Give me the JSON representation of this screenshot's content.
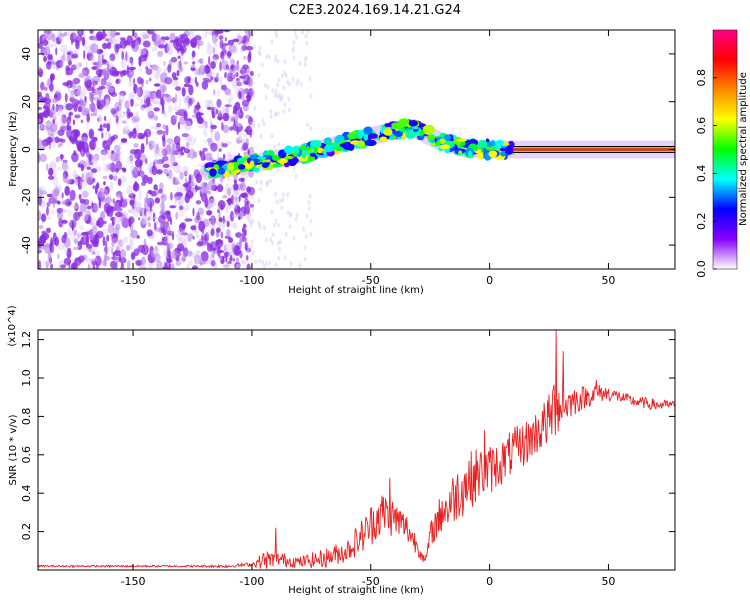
{
  "title": "C2E3.2024.169.14.21.G24",
  "chart_data": [
    {
      "type": "heatmap",
      "xlabel": "Height of straight line (km)",
      "ylabel": "Frequency (Hz)",
      "xlim": [
        -190,
        78
      ],
      "ylim": [
        -50,
        50
      ],
      "xticks": [
        -150,
        -100,
        -50,
        0,
        50
      ],
      "yticks": [
        -40,
        -20,
        0,
        20,
        40
      ],
      "colorbar": {
        "label": "Normalized spectral amplitude",
        "range": [
          0.0,
          1.0
        ],
        "ticks": [
          "0.0",
          "0.2",
          "0.4",
          "0.6",
          "0.8"
        ],
        "colors": [
          "#ffffff",
          "#8800ff",
          "#0000ff",
          "#00ffff",
          "#00ff00",
          "#ffff00",
          "#ff8800",
          "#ff0000",
          "#ff0088"
        ]
      },
      "ridge": {
        "x": [
          -118,
          -100,
          -80,
          -60,
          -40,
          -32,
          -20,
          -10,
          0,
          10,
          78
        ],
        "y": [
          -9,
          -6,
          -2,
          3,
          8,
          9,
          3,
          0.5,
          0,
          0,
          0
        ]
      },
      "noise_region_x": [
        -190,
        -100
      ]
    },
    {
      "type": "line",
      "xlabel": "Height of straight line (km)",
      "ylabel": "SNR (10 * v/v)",
      "y_multiplier": "(x10^4)",
      "xlim": [
        -190,
        78
      ],
      "ylim": [
        0.0,
        1.25
      ],
      "xticks": [
        -150,
        -100,
        -50,
        0,
        50
      ],
      "yticks": [
        "0.2",
        "0.4",
        "0.6",
        "0.8",
        "1.0",
        "1.2"
      ],
      "series": [
        {
          "color": "#e82020",
          "x": [
            -190,
            -160,
            -130,
            -110,
            -100,
            -95,
            -90,
            -80,
            -70,
            -60,
            -52,
            -48,
            -44,
            -40,
            -35,
            -30,
            -27,
            -25,
            -22,
            -18,
            -15,
            -10,
            -5,
            0,
            5,
            10,
            15,
            20,
            25,
            28,
            30,
            35,
            40,
            45,
            50,
            55,
            60,
            65,
            70,
            78
          ],
          "y": [
            0.02,
            0.02,
            0.02,
            0.02,
            0.03,
            0.05,
            0.06,
            0.04,
            0.06,
            0.1,
            0.2,
            0.27,
            0.3,
            0.27,
            0.22,
            0.12,
            0.04,
            0.18,
            0.26,
            0.32,
            0.38,
            0.45,
            0.5,
            0.52,
            0.56,
            0.62,
            0.66,
            0.72,
            0.78,
            0.88,
            0.85,
            0.88,
            0.9,
            0.92,
            0.92,
            0.9,
            0.88,
            0.87,
            0.86,
            0.86
          ],
          "spread": [
            0.005,
            0.005,
            0.005,
            0.008,
            0.01,
            0.05,
            0.04,
            0.03,
            0.05,
            0.06,
            0.1,
            0.12,
            0.12,
            0.1,
            0.08,
            0.05,
            0.02,
            0.06,
            0.1,
            0.12,
            0.14,
            0.16,
            0.14,
            0.13,
            0.12,
            0.12,
            0.12,
            0.12,
            0.14,
            0.2,
            0.1,
            0.08,
            0.06,
            0.05,
            0.04,
            0.03,
            0.03,
            0.03,
            0.03,
            0.02
          ],
          "peaks": [
            {
              "x": -42,
              "y": 0.48
            },
            {
              "x": -90,
              "y": 0.22
            },
            {
              "x": -20,
              "y": 0.36
            },
            {
              "x": -2,
              "y": 0.73
            },
            {
              "x": 28,
              "y": 1.25
            },
            {
              "x": 31,
              "y": 1.14
            },
            {
              "x": 45,
              "y": 0.99
            }
          ]
        }
      ]
    }
  ]
}
